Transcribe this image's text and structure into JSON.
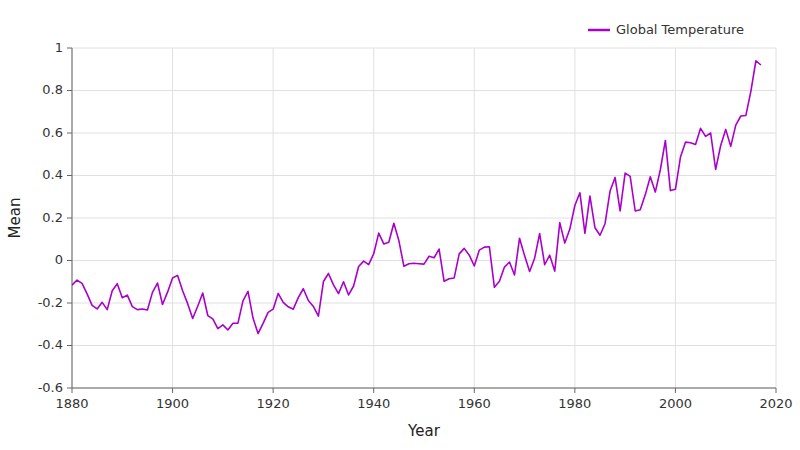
{
  "chart_data": {
    "type": "line",
    "xlabel": "Year",
    "ylabel": "Mean",
    "x": [
      1880,
      1881,
      1882,
      1883,
      1884,
      1885,
      1886,
      1887,
      1888,
      1889,
      1890,
      1891,
      1892,
      1893,
      1894,
      1895,
      1896,
      1897,
      1898,
      1899,
      1900,
      1901,
      1902,
      1903,
      1904,
      1905,
      1906,
      1907,
      1908,
      1909,
      1910,
      1911,
      1912,
      1913,
      1914,
      1915,
      1916,
      1917,
      1918,
      1919,
      1920,
      1921,
      1922,
      1923,
      1924,
      1925,
      1926,
      1927,
      1928,
      1929,
      1930,
      1931,
      1932,
      1933,
      1934,
      1935,
      1936,
      1937,
      1938,
      1939,
      1940,
      1941,
      1942,
      1943,
      1944,
      1945,
      1946,
      1947,
      1948,
      1949,
      1950,
      1951,
      1952,
      1953,
      1954,
      1955,
      1956,
      1957,
      1958,
      1959,
      1960,
      1961,
      1962,
      1963,
      1964,
      1965,
      1966,
      1967,
      1968,
      1969,
      1970,
      1971,
      1972,
      1973,
      1974,
      1975,
      1976,
      1977,
      1978,
      1979,
      1980,
      1981,
      1982,
      1983,
      1984,
      1985,
      1986,
      1987,
      1988,
      1989,
      1990,
      1991,
      1992,
      1993,
      1994,
      1995,
      1996,
      1997,
      1998,
      1999,
      2000,
      2001,
      2002,
      2003,
      2004,
      2005,
      2006,
      2007,
      2008,
      2009,
      2010,
      2011,
      2012,
      2013,
      2014,
      2015,
      2016,
      2017
    ],
    "series": [
      {
        "name": "Global Temperature",
        "color": "#AA00CC",
        "values": [
          -0.116,
          -0.092,
          -0.108,
          -0.157,
          -0.211,
          -0.228,
          -0.197,
          -0.231,
          -0.142,
          -0.109,
          -0.175,
          -0.163,
          -0.217,
          -0.231,
          -0.228,
          -0.233,
          -0.15,
          -0.106,
          -0.207,
          -0.149,
          -0.082,
          -0.07,
          -0.142,
          -0.203,
          -0.273,
          -0.215,
          -0.153,
          -0.259,
          -0.275,
          -0.321,
          -0.303,
          -0.327,
          -0.295,
          -0.295,
          -0.19,
          -0.145,
          -0.271,
          -0.344,
          -0.296,
          -0.244,
          -0.229,
          -0.155,
          -0.197,
          -0.218,
          -0.229,
          -0.175,
          -0.133,
          -0.188,
          -0.216,
          -0.262,
          -0.099,
          -0.061,
          -0.115,
          -0.156,
          -0.1,
          -0.162,
          -0.12,
          -0.028,
          -0.003,
          -0.019,
          0.032,
          0.129,
          0.078,
          0.086,
          0.175,
          0.094,
          -0.027,
          -0.015,
          -0.013,
          -0.015,
          -0.017,
          0.02,
          0.013,
          0.054,
          -0.098,
          -0.086,
          -0.082,
          0.031,
          0.057,
          0.025,
          -0.026,
          0.049,
          0.063,
          0.065,
          -0.126,
          -0.098,
          -0.031,
          -0.007,
          -0.068,
          0.105,
          0.023,
          -0.052,
          0.011,
          0.127,
          -0.02,
          0.025,
          -0.05,
          0.178,
          0.082,
          0.148,
          0.259,
          0.319,
          0.128,
          0.303,
          0.154,
          0.119,
          0.173,
          0.327,
          0.391,
          0.233,
          0.411,
          0.396,
          0.233,
          0.239,
          0.309,
          0.394,
          0.322,
          0.427,
          0.565,
          0.329,
          0.335,
          0.487,
          0.557,
          0.554,
          0.546,
          0.622,
          0.584,
          0.6,
          0.429,
          0.541,
          0.617,
          0.537,
          0.637,
          0.68,
          0.682,
          0.796,
          0.94,
          0.92
        ]
      }
    ],
    "xlim": [
      1880,
      2020
    ],
    "ylim": [
      -0.6,
      1.0
    ],
    "xticks": [
      1880,
      1900,
      1920,
      1940,
      1960,
      1980,
      2000,
      2020
    ],
    "yticks": [
      -0.6,
      -0.4,
      -0.2,
      0,
      0.2,
      0.4,
      0.6,
      0.8,
      1
    ],
    "grid": true,
    "legend": "upper right"
  }
}
